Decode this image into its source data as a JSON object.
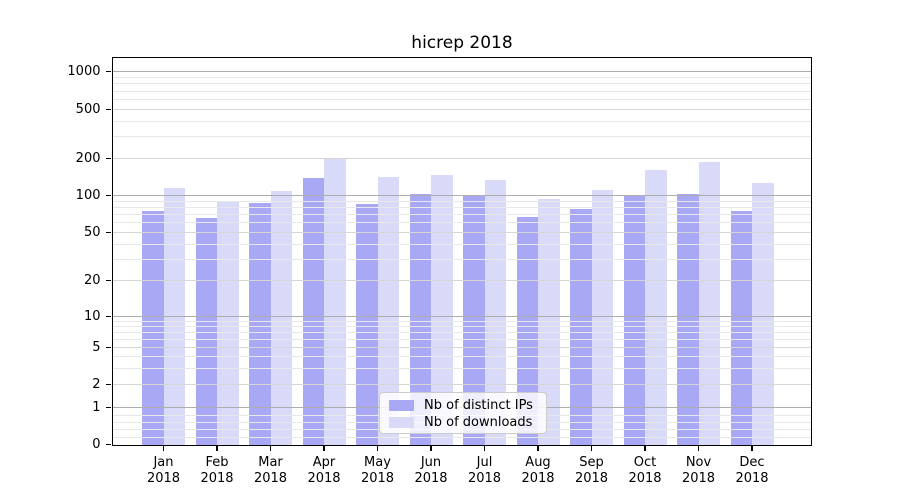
{
  "figure": {
    "background": "#ffffff",
    "title": "hicrep 2018"
  },
  "chart_data": {
    "type": "bar",
    "title": "hicrep 2018",
    "categories": [
      "Jan",
      "Feb",
      "Mar",
      "Apr",
      "May",
      "Jun",
      "Jul",
      "Aug",
      "Sep",
      "Oct",
      "Nov",
      "Dec"
    ],
    "x_tick_year": "2018",
    "series": [
      {
        "name": "Nb of distinct IPs",
        "color": "#a8a8f5",
        "values": [
          75,
          66,
          87,
          140,
          86,
          103,
          100,
          67,
          78,
          100,
          103,
          75
        ]
      },
      {
        "name": "Nb of downloads",
        "color": "#d9d9f8",
        "values": [
          115,
          91,
          108,
          200,
          142,
          147,
          133,
          94,
          110,
          160,
          186,
          126
        ]
      }
    ],
    "yscale": "symlog",
    "ylim": [
      0,
      1294
    ],
    "y_ticks": [
      1000,
      500,
      200,
      100,
      50,
      20,
      10,
      5,
      2,
      1,
      0
    ],
    "grid": "both",
    "legend_position": "lower center",
    "colors": {
      "grid_major": "#adadad",
      "grid_mid": "#d6d6d6",
      "grid_minor": "#e8e8e8",
      "spine": "#000000"
    }
  }
}
